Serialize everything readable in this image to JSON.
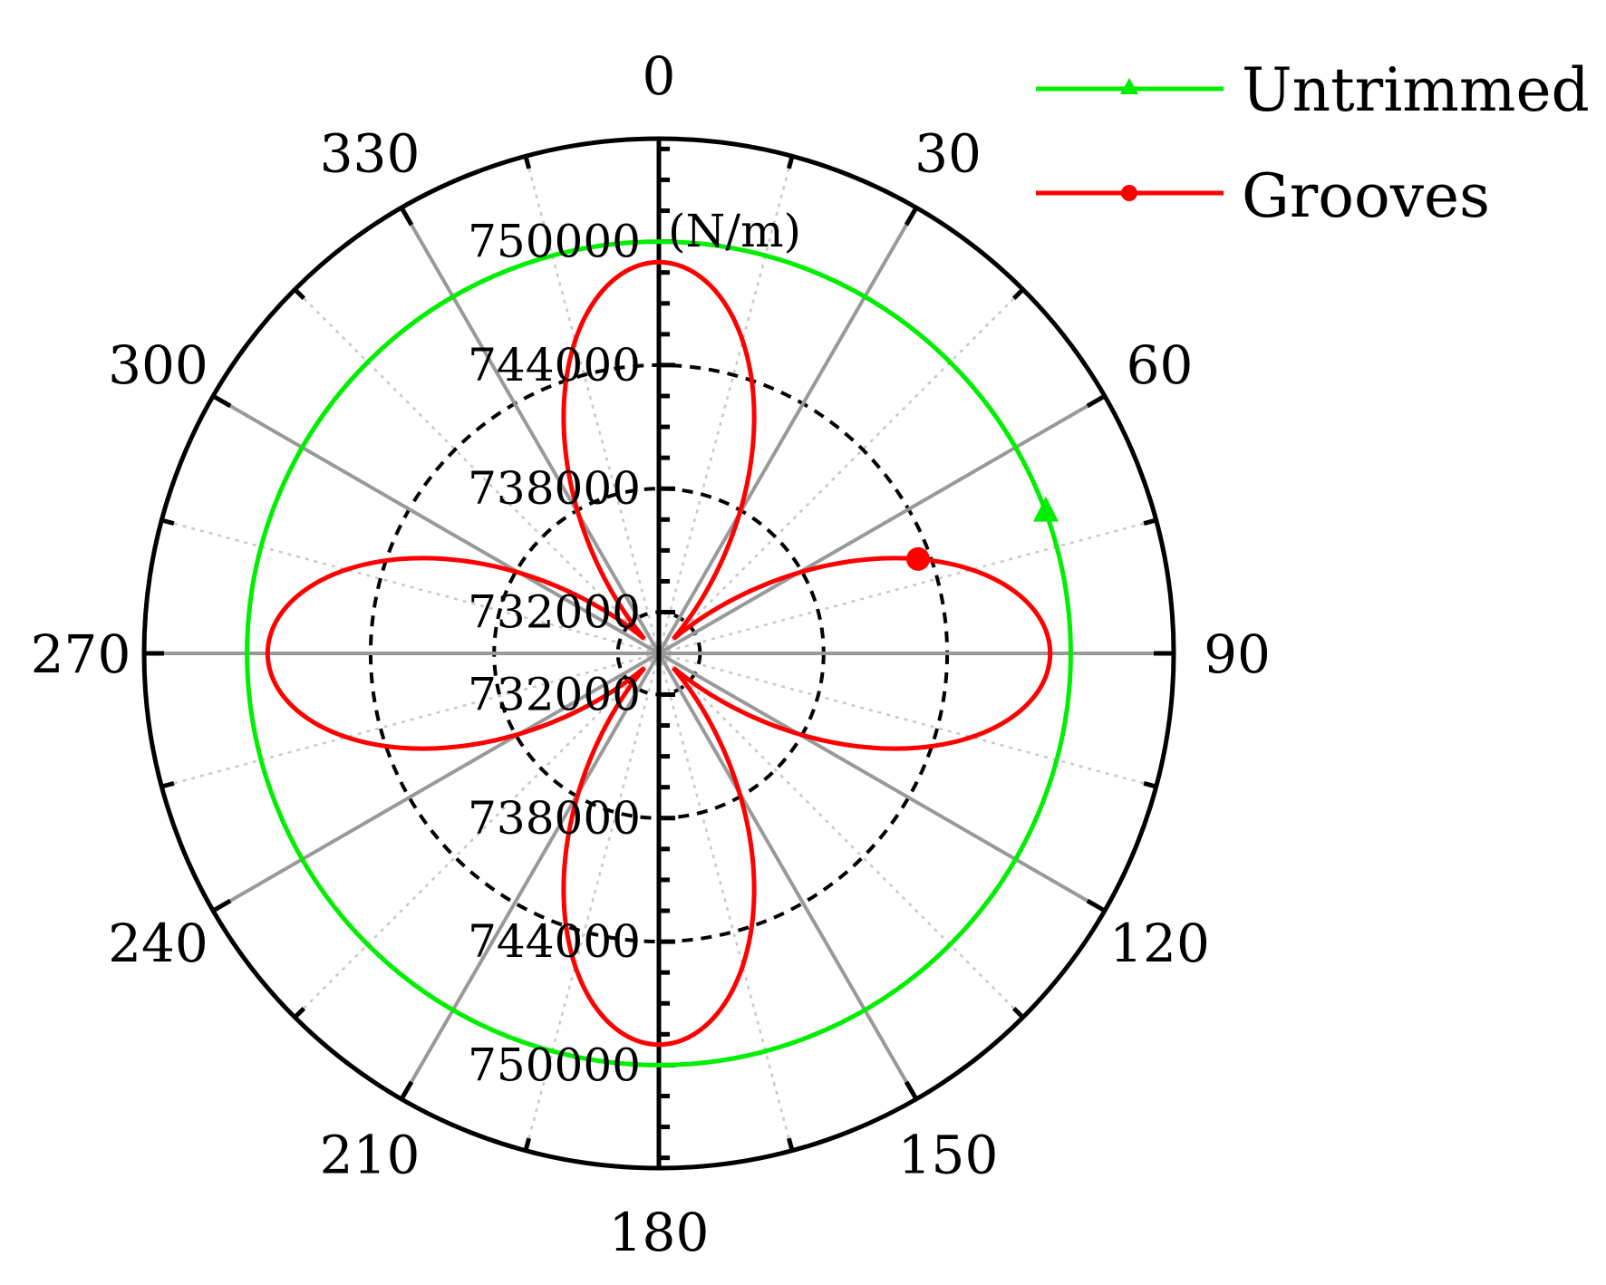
{
  "chart_data": {
    "type": "polar-line",
    "unit_label": "(N/m)",
    "angle_ticks": [
      "0",
      "30",
      "60",
      "90",
      "120",
      "150",
      "180",
      "210",
      "240",
      "270",
      "300",
      "330"
    ],
    "angle_values": [
      0,
      30,
      60,
      90,
      120,
      150,
      180,
      210,
      240,
      270,
      300,
      330
    ],
    "radial_labels_upper": [
      "750000",
      "744000",
      "738000",
      "732000"
    ],
    "radial_labels_lower": [
      "732000",
      "738000",
      "744000",
      "750000"
    ],
    "radial_ring_values": [
      732000,
      738000,
      744000
    ],
    "radial_range": [
      730000,
      755000
    ],
    "grid": true,
    "legend_position": "top-right",
    "series": [
      {
        "name": "Untrimmed",
        "color": "#00ee00",
        "marker": "triangle",
        "shape": "constant",
        "value": 750000
      },
      {
        "name": "Grooves",
        "color": "#ff0000",
        "marker": "circle",
        "shape": "four-lobed",
        "peak_value": 749000,
        "trough_value": 731000,
        "peak_angles": [
          0,
          90,
          180,
          270
        ],
        "trough_angles": [
          45,
          135,
          225,
          315
        ]
      }
    ],
    "marker_angle": 70
  }
}
